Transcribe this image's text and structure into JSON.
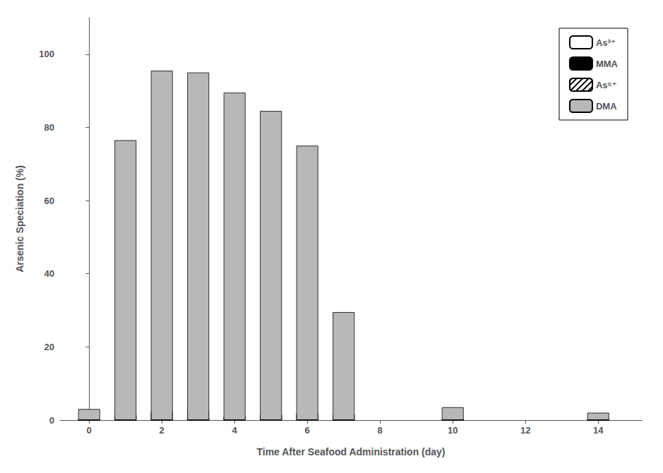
{
  "chart_data": {
    "type": "bar",
    "stacked": true,
    "xlabel": "Time After Seafood Administration (day)",
    "ylabel": "Arsenic Speciation (%)",
    "x": [
      0,
      1,
      2,
      3,
      4,
      5,
      6,
      7,
      10,
      14
    ],
    "series": [
      {
        "name": "As³⁺",
        "color": "#ffffff",
        "values": [
          0,
          1.0,
          2.5,
          2.5,
          1.0,
          0.8,
          0,
          0,
          0,
          0
        ]
      },
      {
        "name": "MMA",
        "color": "#000000",
        "values": [
          0,
          1.5,
          2.0,
          0.5,
          1.0,
          0,
          0,
          0,
          0,
          0
        ]
      },
      {
        "name": "As⁵⁺",
        "color": "#ffffff",
        "values": [
          0,
          0,
          0,
          0,
          0,
          1.5,
          1.8,
          1.5,
          0,
          0
        ]
      },
      {
        "name": "DMA",
        "color": "#b8b8b8",
        "values": [
          3.0,
          76.5,
          95.5,
          95.0,
          89.5,
          84.5,
          75.0,
          29.5,
          3.5,
          2.0
        ]
      }
    ],
    "xlim": [
      -0.8,
      15.2
    ],
    "xticks": [
      0,
      2,
      4,
      6,
      8,
      10,
      12,
      14
    ],
    "ylim": [
      0,
      110
    ],
    "yticks": [
      0,
      20,
      40,
      60,
      80,
      100
    ],
    "grid": false,
    "legend": "upper right"
  }
}
